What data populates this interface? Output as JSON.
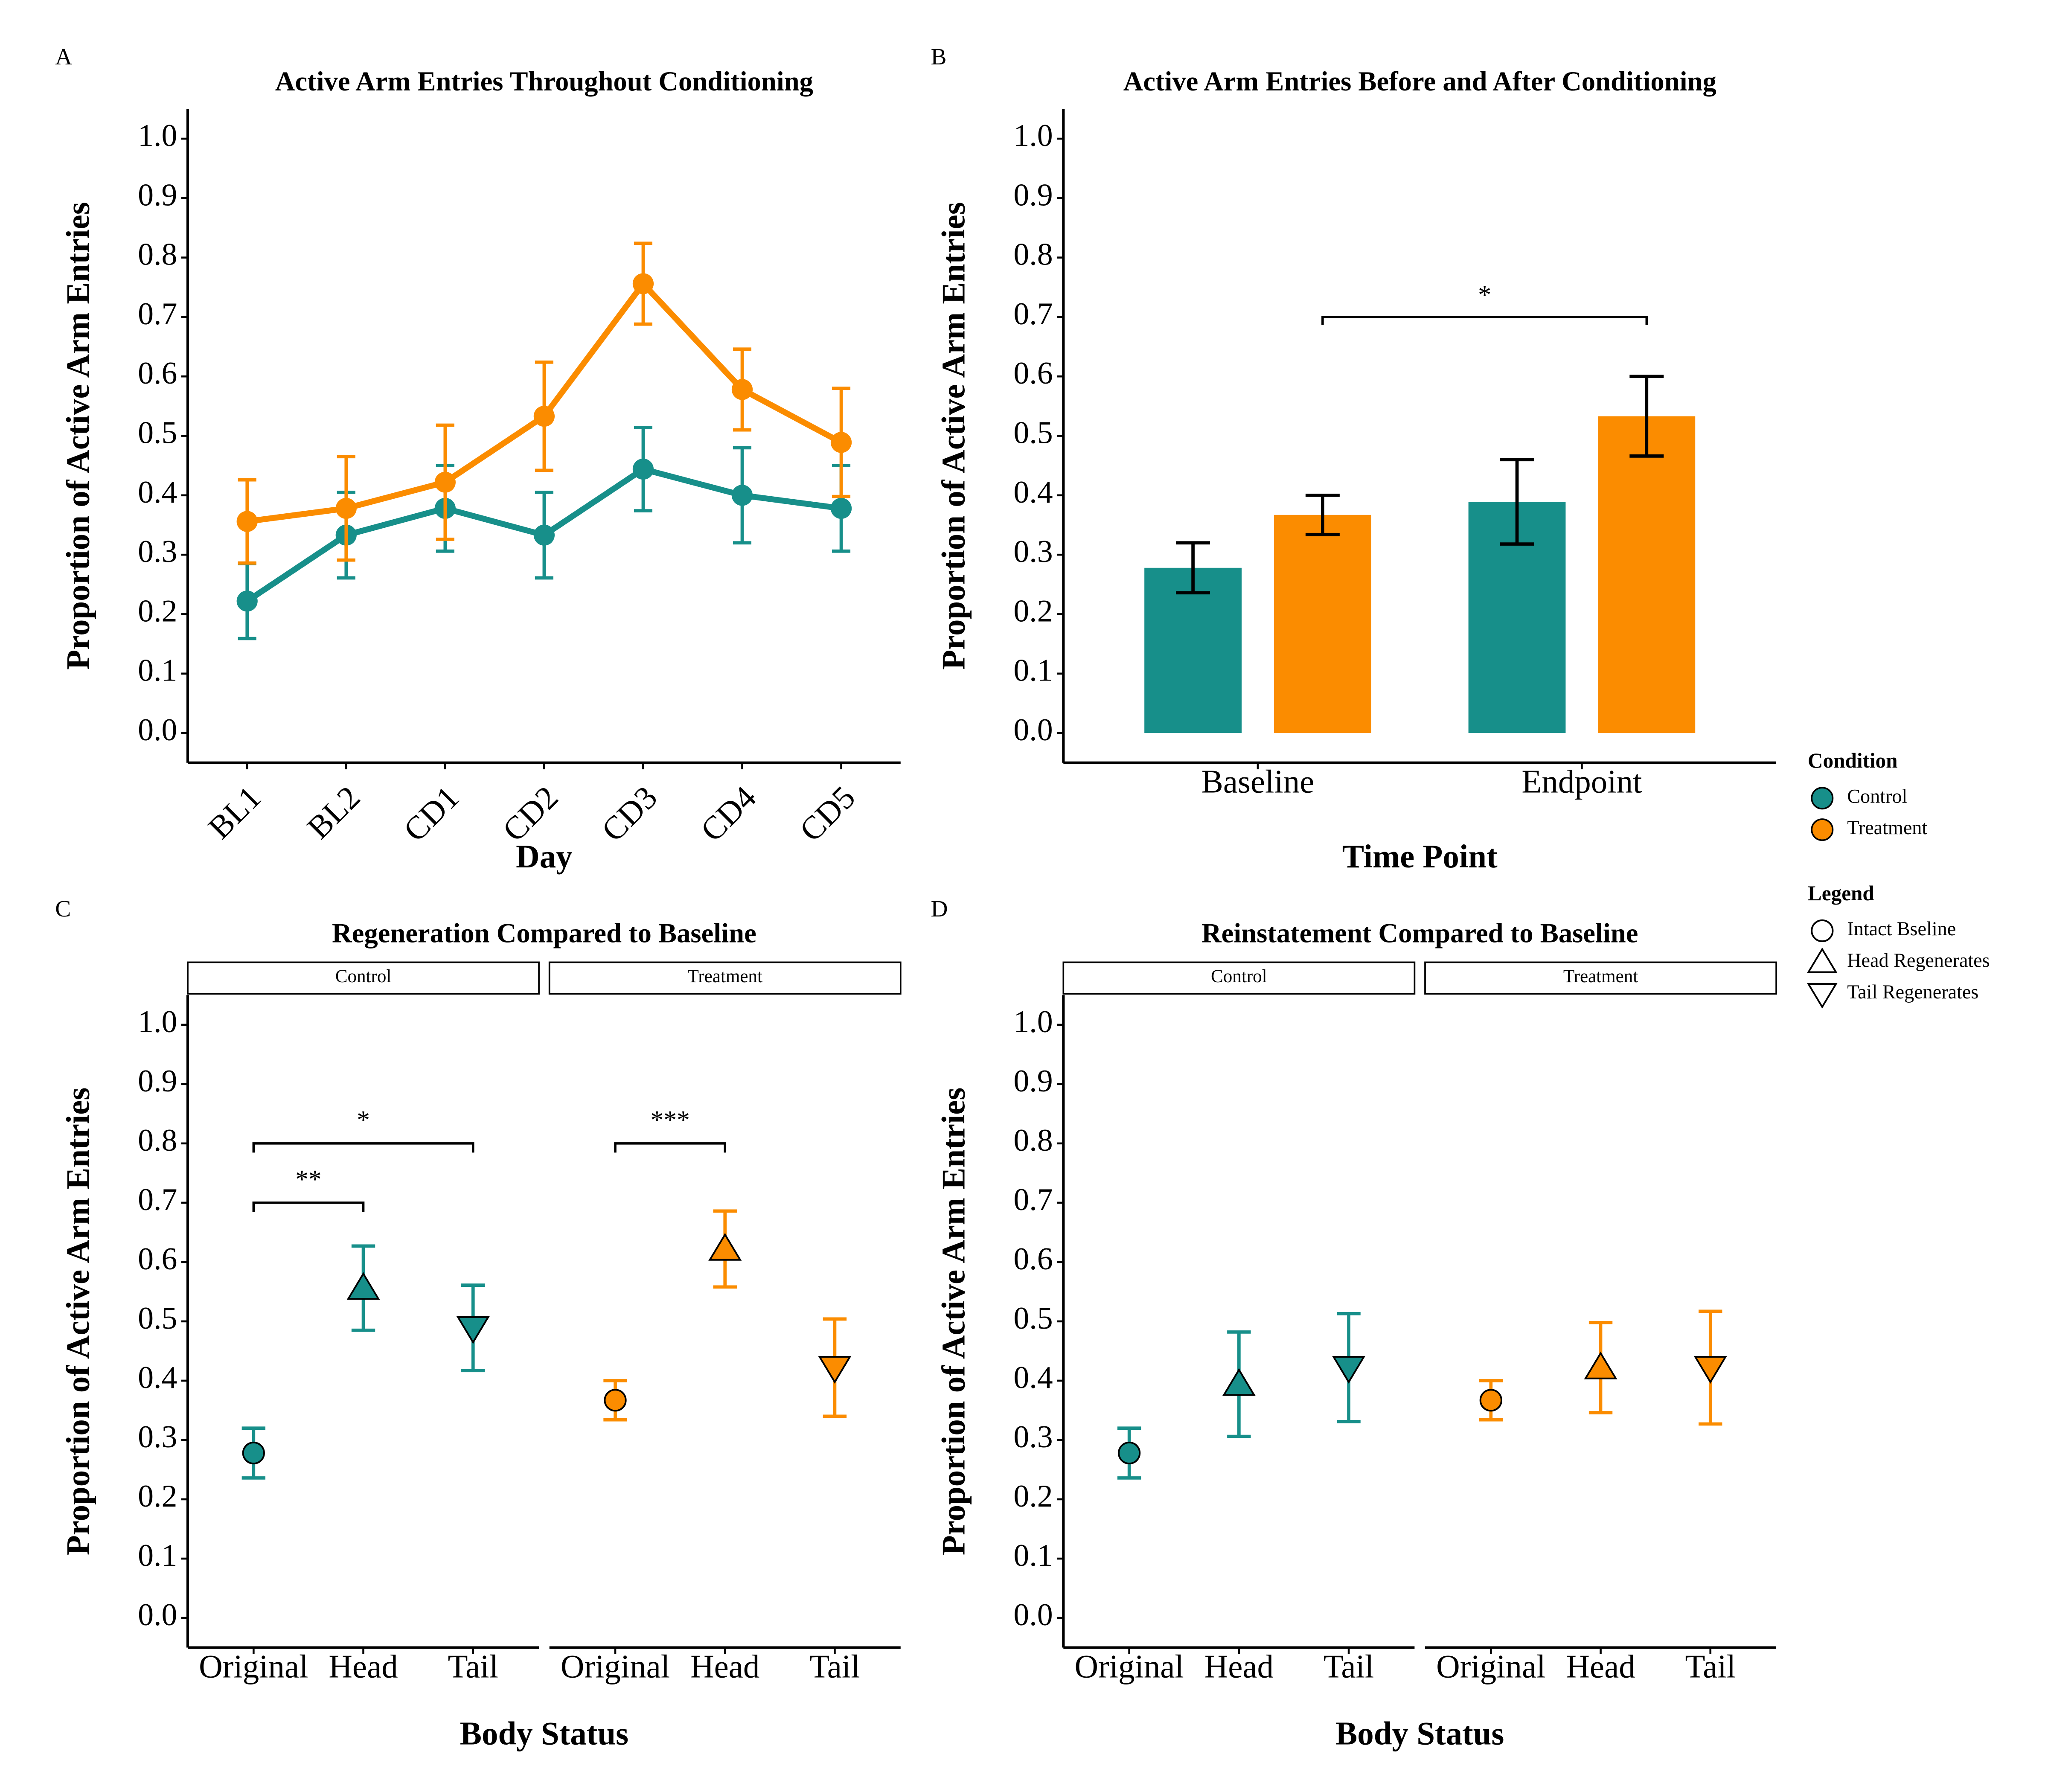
{
  "chart_data": [
    {
      "panel_label": "A",
      "type": "line",
      "title": "Active Arm Entries Throughout Conditioning",
      "x_label": "Day",
      "y_label": "Proportion of Active Arm Entries",
      "categories": [
        "BL1",
        "BL2",
        "CD1",
        "CD2",
        "CD3",
        "CD4",
        "CD5"
      ],
      "series": [
        {
          "name": "Control",
          "color": "#178f8a",
          "values": [
            0.222,
            0.333,
            0.378,
            0.333,
            0.444,
            0.4,
            0.378
          ],
          "errors": [
            0.063,
            0.072,
            0.072,
            0.072,
            0.07,
            0.08,
            0.072
          ]
        },
        {
          "name": "Treatment",
          "color": "#fb8c00",
          "values": [
            0.356,
            0.378,
            0.422,
            0.533,
            0.756,
            0.578,
            0.489
          ],
          "errors": [
            0.07,
            0.087,
            0.096,
            0.091,
            0.068,
            0.068,
            0.091
          ]
        }
      ],
      "ylim": [
        -0.05,
        1.05
      ],
      "yticks": [
        {
          "value": 0,
          "label": "0.0"
        },
        0.1,
        0.2,
        0.3,
        0.4,
        0.5,
        0.6,
        0.7,
        0.8,
        0.9,
        {
          "value": 1,
          "label": "1.0"
        }
      ],
      "x_tick_rotation": 45
    },
    {
      "panel_label": "B",
      "type": "bar",
      "title": "Active Arm Entries Before and After Conditioning",
      "x_label": "Time Point",
      "y_label": "Proportion of Active Arm Entries",
      "categories": [
        "Baseline",
        "Endpoint"
      ],
      "series": [
        {
          "name": "Control",
          "color": "#178f8a",
          "values": [
            0.278,
            0.389
          ],
          "errors": [
            0.042,
            0.071
          ]
        },
        {
          "name": "Treatment",
          "color": "#fb8c00",
          "values": [
            0.367,
            0.533
          ],
          "errors": [
            0.033,
            0.067
          ]
        }
      ],
      "ylim": [
        -0.05,
        1.05
      ],
      "yticks": [
        {
          "value": 0,
          "label": "0.0"
        },
        0.1,
        0.2,
        0.3,
        0.4,
        0.5,
        0.6,
        0.7,
        0.8,
        0.9,
        {
          "value": 1,
          "label": "1.0"
        }
      ],
      "brackets": [
        {
          "from": "Baseline",
          "to": "Endpoint",
          "series": "Treatment",
          "y": 0.7,
          "label": "*"
        }
      ],
      "legend_title": "Condition",
      "legend_position": "right"
    },
    {
      "panel_label": "C",
      "type": "point",
      "title": "Regeneration Compared to Baseline",
      "x_label": "Body Status",
      "y_label": "Proportion of Active Arm Entries",
      "categories": [
        "Original",
        "Head",
        "Tail"
      ],
      "shapes": [
        "circle",
        "triangle-up",
        "triangle-down"
      ],
      "series": [
        {
          "name": "Control",
          "color": "#178f8a",
          "values": [
            0.278,
            0.556,
            0.489
          ],
          "errors": [
            0.042,
            0.071,
            0.072
          ]
        },
        {
          "name": "Treatment",
          "color": "#fb8c00",
          "values": [
            0.367,
            0.622,
            0.422
          ],
          "errors": [
            0.033,
            0.064,
            0.082
          ]
        }
      ],
      "ylim": [
        -0.05,
        1.05
      ],
      "yticks": [
        {
          "value": 0,
          "label": "0.0"
        },
        0.1,
        0.2,
        0.3,
        0.4,
        0.5,
        0.6,
        0.7,
        0.8,
        0.9,
        {
          "value": 1,
          "label": "1.0"
        }
      ],
      "brackets": [
        {
          "facet": "Control",
          "from": "Original",
          "to": "Head",
          "y": 0.7,
          "label": "**"
        },
        {
          "facet": "Control",
          "from": "Original",
          "to": "Tail",
          "y": 0.8,
          "label": "*"
        },
        {
          "facet": "Treatment",
          "from": "Original",
          "to": "Head",
          "y": 0.8,
          "label": "***"
        }
      ],
      "shape_legend": {
        "title": "Legend",
        "labels": [
          "Intact Bseline",
          "Head Regenerates",
          "Tail Regenerates"
        ]
      }
    },
    {
      "panel_label": "D",
      "type": "point",
      "title": "Reinstatement Compared to Baseline",
      "x_label": "Body Status",
      "y_label": "Proportion of Active Arm Entries",
      "categories": [
        "Original",
        "Head",
        "Tail"
      ],
      "shapes": [
        "circle",
        "triangle-up",
        "triangle-down"
      ],
      "series": [
        {
          "name": "Control",
          "color": "#178f8a",
          "values": [
            0.278,
            0.394,
            0.422
          ],
          "errors": [
            0.042,
            0.088,
            0.091
          ]
        },
        {
          "name": "Treatment",
          "color": "#fb8c00",
          "values": [
            0.367,
            0.422,
            0.422
          ],
          "errors": [
            0.033,
            0.076,
            0.095
          ]
        }
      ],
      "ylim": [
        -0.05,
        1.05
      ],
      "yticks": [
        {
          "value": 0,
          "label": "0.0"
        },
        0.1,
        0.2,
        0.3,
        0.4,
        0.5,
        0.6,
        0.7,
        0.8,
        0.9,
        {
          "value": 1,
          "label": "1.0"
        }
      ]
    }
  ]
}
